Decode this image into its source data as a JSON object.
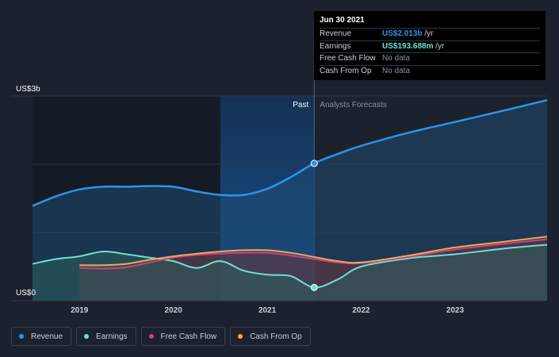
{
  "chart_data": {
    "type": "area",
    "y_axis": {
      "top_label": "US$3b",
      "bottom_label": "US$0",
      "ylim": [
        0,
        3
      ]
    },
    "x_axis": {
      "ticks": [
        "2019",
        "2020",
        "2021",
        "2022",
        "2023"
      ],
      "xlim": [
        2018.5,
        2023.98
      ]
    },
    "annotations": {
      "past": "Past",
      "forecast": "Analysts Forecasts"
    },
    "highlight_date": 2021.5,
    "series": [
      {
        "name": "Revenue",
        "color": "#2e94e5",
        "x": [
          2018.5,
          2018.75,
          2019.0,
          2019.25,
          2019.5,
          2019.75,
          2020.0,
          2020.25,
          2020.5,
          2020.75,
          2021.0,
          2021.25,
          2021.5,
          2021.75,
          2022.0,
          2022.5,
          2023.0,
          2023.5,
          2023.98
        ],
        "values": [
          1.39,
          1.53,
          1.63,
          1.67,
          1.67,
          1.68,
          1.67,
          1.6,
          1.55,
          1.55,
          1.64,
          1.81,
          2.013,
          2.15,
          2.27,
          2.46,
          2.62,
          2.78,
          2.94
        ]
      },
      {
        "name": "Earnings",
        "color": "#6ee0d4",
        "x": [
          2018.5,
          2018.75,
          2019.0,
          2019.25,
          2019.5,
          2019.75,
          2020.0,
          2020.25,
          2020.5,
          2020.75,
          2021.0,
          2021.25,
          2021.5,
          2021.75,
          2022.0,
          2022.5,
          2023.0,
          2023.5,
          2023.98
        ],
        "values": [
          0.54,
          0.61,
          0.65,
          0.72,
          0.68,
          0.63,
          0.58,
          0.48,
          0.58,
          0.44,
          0.38,
          0.36,
          0.194,
          0.31,
          0.5,
          0.62,
          0.68,
          0.76,
          0.82
        ]
      },
      {
        "name": "Free Cash Flow",
        "color": "#c9427b",
        "x": [
          2019.0,
          2019.25,
          2019.5,
          2019.75,
          2020.0,
          2020.25,
          2020.5,
          2020.75,
          2021.0,
          2021.25,
          2021.5,
          2021.75,
          2022.0,
          2022.5,
          2023.0,
          2023.5,
          2023.98
        ],
        "values": [
          0.48,
          0.47,
          0.49,
          0.56,
          0.63,
          0.67,
          0.69,
          0.7,
          0.7,
          0.66,
          0.61,
          0.56,
          0.55,
          0.64,
          0.75,
          0.83,
          0.9
        ]
      },
      {
        "name": "Cash From Op",
        "color": "#f1a65a",
        "x": [
          2019.0,
          2019.25,
          2019.5,
          2019.75,
          2020.0,
          2020.25,
          2020.5,
          2020.75,
          2021.0,
          2021.25,
          2021.5,
          2021.75,
          2022.0,
          2022.5,
          2023.0,
          2023.5,
          2023.98
        ],
        "values": [
          0.52,
          0.52,
          0.54,
          0.6,
          0.65,
          0.69,
          0.72,
          0.74,
          0.74,
          0.7,
          0.64,
          0.58,
          0.56,
          0.66,
          0.78,
          0.86,
          0.94
        ]
      }
    ]
  },
  "tooltip": {
    "date": "Jun 30 2021",
    "rows": [
      {
        "label": "Revenue",
        "value": "US$2.013b",
        "unit": " /yr"
      },
      {
        "label": "Earnings",
        "value": "US$193.688m",
        "unit": " /yr"
      },
      {
        "label": "Free Cash Flow",
        "value": "No data"
      },
      {
        "label": "Cash From Op",
        "value": "No data"
      }
    ]
  },
  "legend": [
    {
      "label": "Revenue",
      "color": "#2e94e5"
    },
    {
      "label": "Earnings",
      "color": "#6ee0d4"
    },
    {
      "label": "Free Cash Flow",
      "color": "#c9427b"
    },
    {
      "label": "Cash From Op",
      "color": "#f1a65a"
    }
  ]
}
